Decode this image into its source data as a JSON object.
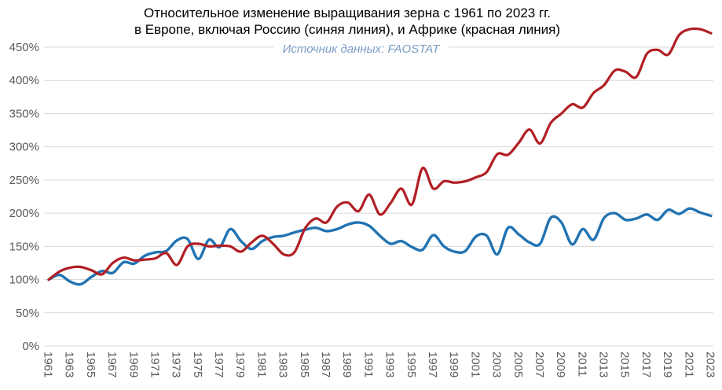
{
  "title": {
    "line1": "Относительное изменение выращивания зерна с 1961 по 2023 гг.",
    "line2": "в Европе, включая Россию (синяя линия), и Африке (красная линия)"
  },
  "subtitle": "Источник данных: FAOSTAT",
  "colors": {
    "europe_line": "#2173b2",
    "africa_line": "#b11f24",
    "gridline": "#d9d9d9",
    "tick_label": "#595959",
    "subtitle_text": "#7a9bc4",
    "title_text": "#000000",
    "background": "#ffffff"
  },
  "chart_data": {
    "type": "line",
    "title": "Относительное изменение выращивания зерна с 1961 по 2023 гг. в Европе, включая Россию (синяя линия), и Африке (красная линия)",
    "subtitle": "Источник данных: FAOSTAT",
    "xlabel": "",
    "ylabel": "",
    "grid": "horizontal",
    "legend_position": "none (series named in title)",
    "ylim": [
      0,
      480
    ],
    "ytick_suffix": "%",
    "yticks": [
      0,
      50,
      100,
      150,
      200,
      250,
      300,
      350,
      400,
      450
    ],
    "xlim": [
      1961,
      2023
    ],
    "xticklabels": [
      1961,
      1963,
      1965,
      1967,
      1969,
      1971,
      1973,
      1975,
      1977,
      1979,
      1981,
      1983,
      1985,
      1987,
      1989,
      1991,
      1993,
      1995,
      1997,
      1999,
      2001,
      2003,
      2005,
      2007,
      2009,
      2011,
      2013,
      2015,
      2017,
      2019,
      2021,
      2023
    ],
    "x": [
      1961,
      1962,
      1963,
      1964,
      1965,
      1966,
      1967,
      1968,
      1969,
      1970,
      1971,
      1972,
      1973,
      1974,
      1975,
      1976,
      1977,
      1978,
      1979,
      1980,
      1981,
      1982,
      1983,
      1984,
      1985,
      1986,
      1987,
      1988,
      1989,
      1990,
      1991,
      1992,
      1993,
      1994,
      1995,
      1996,
      1997,
      1998,
      1999,
      2000,
      2001,
      2002,
      2003,
      2004,
      2005,
      2006,
      2007,
      2008,
      2009,
      2010,
      2011,
      2012,
      2013,
      2014,
      2015,
      2016,
      2017,
      2018,
      2019,
      2020,
      2021,
      2022,
      2023
    ],
    "series": [
      {
        "name": "Европа, включая Россию (синяя линия)",
        "color": "#2173b2",
        "values": [
          100,
          107,
          97,
          93,
          104,
          113,
          110,
          126,
          124,
          136,
          141,
          143,
          159,
          161,
          131,
          160,
          149,
          176,
          158,
          146,
          158,
          164,
          166,
          171,
          175,
          178,
          173,
          176,
          183,
          186,
          181,
          166,
          154,
          158,
          149,
          145,
          167,
          150,
          142,
          143,
          165,
          166,
          138,
          178,
          168,
          156,
          154,
          193,
          186,
          153,
          176,
          160,
          193,
          200,
          190,
          192,
          198,
          190,
          205,
          199,
          207,
          201,
          196
        ]
      },
      {
        "name": "Африка (красная линия)",
        "color": "#b11f24",
        "values": [
          100,
          112,
          118,
          119,
          114,
          108,
          125,
          133,
          129,
          130,
          132,
          140,
          122,
          150,
          154,
          150,
          151,
          150,
          142,
          156,
          166,
          154,
          138,
          141,
          177,
          192,
          186,
          210,
          216,
          203,
          228,
          198,
          215,
          237,
          213,
          268,
          237,
          248,
          246,
          248,
          254,
          262,
          289,
          288,
          306,
          326,
          305,
          336,
          350,
          364,
          359,
          381,
          393,
          415,
          413,
          405,
          440,
          446,
          439,
          468,
          477,
          477,
          471
        ]
      }
    ]
  }
}
